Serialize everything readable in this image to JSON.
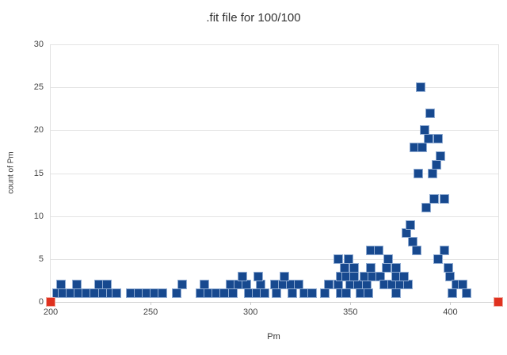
{
  "header": {
    "title": ".fit file for 100/100"
  },
  "axes": {
    "x_title": "Pm",
    "y_title": "count of Pm"
  },
  "colors": {
    "point": "#17498f",
    "point_halo": "#8fabd2",
    "range_marker": "#e0311f",
    "grid": "#e4e4e4",
    "axis": "#d0d0d0",
    "text": "#333333"
  },
  "chart_data": {
    "type": "scatter",
    "title": ".fit file for 100/100",
    "xlabel": "Pm",
    "ylabel": "count of Pm",
    "xlim": [
      200,
      424
    ],
    "ylim": [
      0,
      30
    ],
    "x_ticks": [
      200,
      250,
      300,
      350,
      400
    ],
    "y_ticks": [
      0,
      5,
      10,
      15,
      20,
      25,
      30
    ],
    "grid": "horizontal-only",
    "legend": "none",
    "series": [
      {
        "name": "count of Pm",
        "marker": "square",
        "color": "#17498f",
        "points": [
          [
            203,
            1
          ],
          [
            206,
            1
          ],
          [
            210,
            1
          ],
          [
            214,
            1
          ],
          [
            218,
            1
          ],
          [
            205,
            2
          ],
          [
            213,
            2
          ],
          [
            222,
            1
          ],
          [
            226,
            1
          ],
          [
            230,
            1
          ],
          [
            233,
            1
          ],
          [
            224,
            2
          ],
          [
            228,
            2
          ],
          [
            240,
            1
          ],
          [
            244,
            1
          ],
          [
            248,
            1
          ],
          [
            252,
            1
          ],
          [
            256,
            1
          ],
          [
            263,
            1
          ],
          [
            266,
            2
          ],
          [
            275,
            1
          ],
          [
            279,
            1
          ],
          [
            283,
            1
          ],
          [
            287,
            1
          ],
          [
            291,
            1
          ],
          [
            277,
            2
          ],
          [
            290,
            2
          ],
          [
            294,
            2
          ],
          [
            298,
            2
          ],
          [
            296,
            3
          ],
          [
            299,
            1
          ],
          [
            303,
            1
          ],
          [
            307,
            1
          ],
          [
            305,
            2
          ],
          [
            304,
            3
          ],
          [
            313,
            1
          ],
          [
            312,
            2
          ],
          [
            316,
            2
          ],
          [
            320,
            2
          ],
          [
            317,
            3
          ],
          [
            321,
            1
          ],
          [
            324,
            2
          ],
          [
            327,
            1
          ],
          [
            331,
            1
          ],
          [
            337,
            1
          ],
          [
            339,
            2
          ],
          [
            344,
            2
          ],
          [
            350,
            2
          ],
          [
            354,
            2
          ],
          [
            345,
            3
          ],
          [
            348,
            3
          ],
          [
            352,
            3
          ],
          [
            345,
            1
          ],
          [
            348,
            1
          ],
          [
            347,
            4
          ],
          [
            352,
            4
          ],
          [
            344,
            5
          ],
          [
            349,
            5
          ],
          [
            355,
            1
          ],
          [
            359,
            1
          ],
          [
            358,
            2
          ],
          [
            357,
            3
          ],
          [
            361,
            3
          ],
          [
            365,
            3
          ],
          [
            360,
            4
          ],
          [
            368,
            4
          ],
          [
            373,
            4
          ],
          [
            369,
            5
          ],
          [
            360,
            6
          ],
          [
            364,
            6
          ],
          [
            367,
            2
          ],
          [
            371,
            2
          ],
          [
            375,
            2
          ],
          [
            379,
            2
          ],
          [
            373,
            3
          ],
          [
            377,
            3
          ],
          [
            373,
            1
          ],
          [
            378,
            8
          ],
          [
            380,
            9
          ],
          [
            381,
            7
          ],
          [
            383,
            6
          ],
          [
            382,
            18
          ],
          [
            384,
            15
          ],
          [
            385,
            25
          ],
          [
            386,
            18
          ],
          [
            387,
            20
          ],
          [
            388,
            11
          ],
          [
            389,
            19
          ],
          [
            390,
            22
          ],
          [
            391,
            15
          ],
          [
            392,
            12
          ],
          [
            393,
            16
          ],
          [
            394,
            19
          ],
          [
            395,
            17
          ],
          [
            397,
            12
          ],
          [
            397,
            6
          ],
          [
            394,
            5
          ],
          [
            399,
            4
          ],
          [
            400,
            3
          ],
          [
            403,
            2
          ],
          [
            406,
            2
          ],
          [
            401,
            1
          ],
          [
            408,
            1
          ]
        ]
      },
      {
        "name": "range markers",
        "marker": "square",
        "color": "#e0311f",
        "points": [
          [
            200,
            0
          ],
          [
            424,
            0
          ]
        ]
      }
    ]
  }
}
